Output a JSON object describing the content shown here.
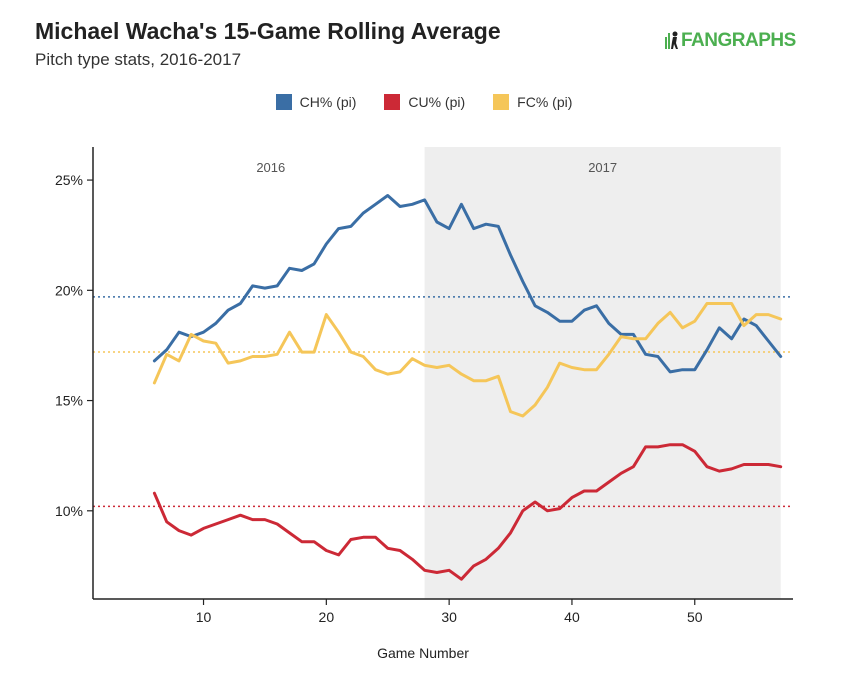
{
  "header": {
    "title": "Michael Wacha's 15-Game Rolling Average",
    "subtitle": "Pitch type stats, 2016-2017",
    "brand": "FANGRAPHS"
  },
  "chart_data": {
    "type": "line",
    "xlabel": "Game Number",
    "ylabel": "",
    "xlim": [
      1,
      58
    ],
    "ylim": [
      0.06,
      0.265
    ],
    "x_ticks": [
      10,
      20,
      30,
      40,
      50
    ],
    "x_tick_labels": [
      "10",
      "20",
      "30",
      "40",
      "50"
    ],
    "y_ticks": [
      0.1,
      0.15,
      0.2,
      0.25
    ],
    "y_tick_labels": [
      "10%",
      "15%",
      "20%",
      "25%"
    ],
    "legend_position": "top-center",
    "grid": false,
    "regions": [
      {
        "label": "2016",
        "x_start": 1,
        "x_end": 28,
        "shaded": false
      },
      {
        "label": "2017",
        "x_start": 28,
        "x_end": 57,
        "shaded": true,
        "color": "#eeeeee"
      }
    ],
    "reference_lines": [
      {
        "series": "CH% (pi)",
        "y": 0.197,
        "color": "#3a6ea5"
      },
      {
        "series": "CU% (pi)",
        "y": 0.102,
        "color": "#cc2936"
      },
      {
        "series": "FC% (pi)",
        "y": 0.172,
        "color": "#f5c659"
      }
    ],
    "x": [
      6,
      7,
      8,
      9,
      10,
      11,
      12,
      13,
      14,
      15,
      16,
      17,
      18,
      19,
      20,
      21,
      22,
      23,
      24,
      25,
      26,
      27,
      28,
      29,
      30,
      31,
      32,
      33,
      34,
      35,
      36,
      37,
      38,
      39,
      40,
      41,
      42,
      43,
      44,
      45,
      46,
      47,
      48,
      49,
      50,
      51,
      52,
      53,
      54,
      55,
      56,
      57
    ],
    "series": [
      {
        "name": "CH% (pi)",
        "color": "#3a6ea5",
        "values": [
          0.168,
          0.173,
          0.181,
          0.179,
          0.181,
          0.185,
          0.191,
          0.194,
          0.202,
          0.201,
          0.202,
          0.21,
          0.209,
          0.212,
          0.221,
          0.228,
          0.229,
          0.235,
          0.239,
          0.243,
          0.238,
          0.239,
          0.241,
          0.231,
          0.228,
          0.239,
          0.228,
          0.23,
          0.229,
          0.216,
          0.204,
          0.193,
          0.19,
          0.186,
          0.186,
          0.191,
          0.193,
          0.185,
          0.18,
          0.18,
          0.171,
          0.17,
          0.163,
          0.164,
          0.164,
          0.173,
          0.183,
          0.178,
          0.187,
          0.184,
          0.177,
          0.17
        ]
      },
      {
        "name": "CU% (pi)",
        "color": "#cc2936",
        "values": [
          0.108,
          0.095,
          0.091,
          0.089,
          0.092,
          0.094,
          0.096,
          0.098,
          0.096,
          0.096,
          0.094,
          0.09,
          0.086,
          0.086,
          0.082,
          0.08,
          0.087,
          0.088,
          0.088,
          0.083,
          0.082,
          0.078,
          0.073,
          0.072,
          0.073,
          0.069,
          0.075,
          0.078,
          0.083,
          0.09,
          0.1,
          0.104,
          0.1,
          0.101,
          0.106,
          0.109,
          0.109,
          0.113,
          0.117,
          0.12,
          0.129,
          0.129,
          0.13,
          0.13,
          0.127,
          0.12,
          0.118,
          0.119,
          0.121,
          0.121,
          0.121,
          0.12
        ]
      },
      {
        "name": "FC% (pi)",
        "color": "#f5c659",
        "values": [
          0.158,
          0.171,
          0.168,
          0.18,
          0.177,
          0.176,
          0.167,
          0.168,
          0.17,
          0.17,
          0.171,
          0.181,
          0.172,
          0.172,
          0.189,
          0.181,
          0.172,
          0.17,
          0.164,
          0.162,
          0.163,
          0.169,
          0.166,
          0.165,
          0.166,
          0.162,
          0.159,
          0.159,
          0.161,
          0.145,
          0.143,
          0.148,
          0.156,
          0.167,
          0.165,
          0.164,
          0.164,
          0.171,
          0.179,
          0.178,
          0.178,
          0.185,
          0.19,
          0.183,
          0.186,
          0.194,
          0.194,
          0.194,
          0.184,
          0.189,
          0.189,
          0.187
        ]
      }
    ]
  }
}
